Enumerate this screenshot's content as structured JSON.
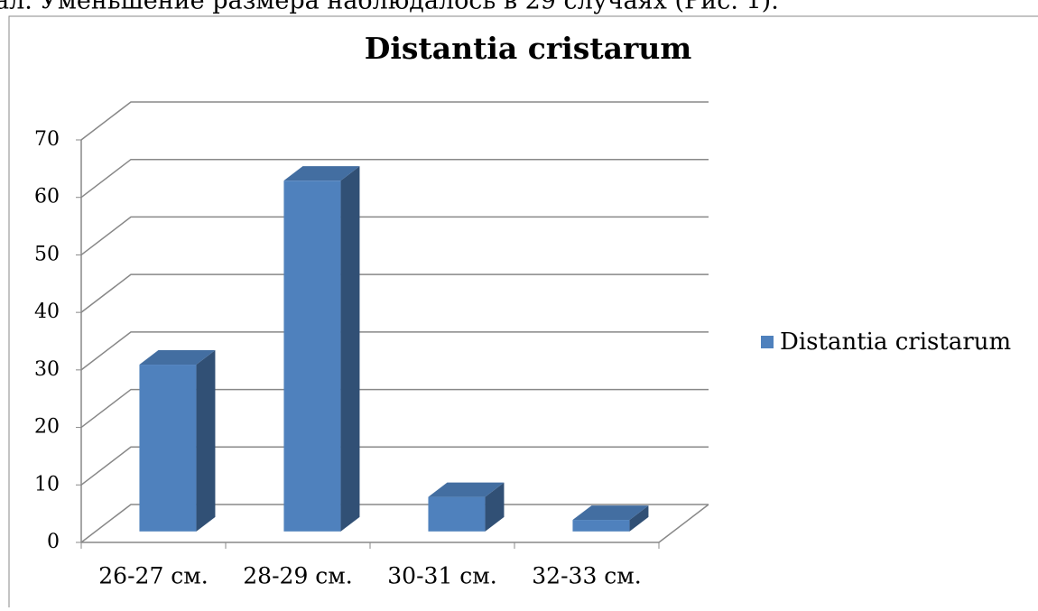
{
  "header_text": "ал. Уменьшение размера наблюдалось в 29 случаях (Рис. 1).",
  "chart_data": {
    "type": "bar3d",
    "title": "Distantia cristarum",
    "categories": [
      "26-27 см.",
      "28-29 см.",
      "30-31 см.",
      "32-33 см."
    ],
    "series": [
      {
        "name": "Distantia cristarum",
        "color": "#4f81bd",
        "values": [
          29,
          61,
          6,
          2
        ]
      }
    ],
    "ylim": [
      0,
      70
    ],
    "yticks": [
      0,
      10,
      20,
      30,
      40,
      50,
      60,
      70
    ],
    "grid": true,
    "legend": "right"
  }
}
